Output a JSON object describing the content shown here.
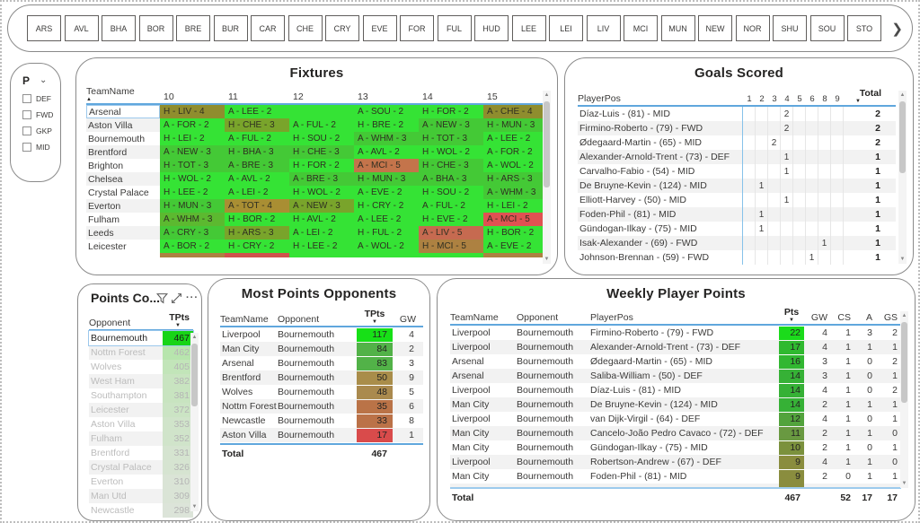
{
  "team_nav": {
    "teams": [
      "ARS",
      "AVL",
      "BHA",
      "BOR",
      "BRE",
      "BUR",
      "CAR",
      "CHE",
      "CRY",
      "EVE",
      "FOR",
      "FUL",
      "HUD",
      "LEE",
      "LEI",
      "LIV",
      "MCI",
      "MUN",
      "NEW",
      "NOR",
      "SHU",
      "SOU",
      "STO"
    ],
    "next_label": "❯"
  },
  "position_filter": {
    "label": "P",
    "chevron": "⌄",
    "options": [
      "DEF",
      "FWD",
      "GKP",
      "MID"
    ]
  },
  "fixtures": {
    "title": "Fixtures",
    "first_col": "TeamName",
    "sort_asc": "▲",
    "gw_columns": [
      "10",
      "11",
      "12",
      "13",
      "14",
      "15"
    ],
    "rows": [
      {
        "team": "Arsenal",
        "cells": [
          {
            "t": "H - LIV - 4",
            "c": "#8f8d2e"
          },
          {
            "t": "A - LEE - 2",
            "c": "#35e335"
          },
          {
            "t": "",
            "c": "#35e335"
          },
          {
            "t": "A - SOU - 2",
            "c": "#35e335"
          },
          {
            "t": "H - FOR - 2",
            "c": "#35e335"
          },
          {
            "t": "A - CHE - 4",
            "c": "#8f8d2e"
          }
        ]
      },
      {
        "team": "Aston Villa",
        "cells": [
          {
            "t": "A - FOR - 2",
            "c": "#35e335"
          },
          {
            "t": "H - CHE - 3",
            "c": "#79a42b"
          },
          {
            "t": "A - FUL - 2",
            "c": "#35e335"
          },
          {
            "t": "H - BRE - 2",
            "c": "#35e335"
          },
          {
            "t": "A - NEW - 3",
            "c": "#44c936"
          },
          {
            "t": "H - MUN - 3",
            "c": "#44c936"
          }
        ]
      },
      {
        "team": "Bournemouth",
        "cells": [
          {
            "t": "H - LEI - 2",
            "c": "#35e335"
          },
          {
            "t": "A - FUL - 2",
            "c": "#35e335"
          },
          {
            "t": "H - SOU - 2",
            "c": "#35e335"
          },
          {
            "t": "A - WHM - 3",
            "c": "#44c936"
          },
          {
            "t": "H - TOT - 3",
            "c": "#44c936"
          },
          {
            "t": "A - LEE - 2",
            "c": "#35e335"
          }
        ]
      },
      {
        "team": "Brentford",
        "cells": [
          {
            "t": "A - NEW - 3",
            "c": "#44c936"
          },
          {
            "t": "H - BHA - 3",
            "c": "#44c936"
          },
          {
            "t": "H - CHE - 3",
            "c": "#44c936"
          },
          {
            "t": "A - AVL - 2",
            "c": "#35e335"
          },
          {
            "t": "H - WOL - 2",
            "c": "#35e335"
          },
          {
            "t": "A - FOR - 2",
            "c": "#35e335"
          }
        ]
      },
      {
        "team": "Brighton",
        "cells": [
          {
            "t": "H - TOT - 3",
            "c": "#44c936"
          },
          {
            "t": "A - BRE - 3",
            "c": "#44c936"
          },
          {
            "t": "H - FOR - 2",
            "c": "#35e335"
          },
          {
            "t": "A - MCI - 5",
            "c": "#c4744b"
          },
          {
            "t": "H - CHE - 3",
            "c": "#44c936"
          },
          {
            "t": "A - WOL - 2",
            "c": "#35e335"
          }
        ]
      },
      {
        "team": "Chelsea",
        "cells": [
          {
            "t": "H - WOL - 2",
            "c": "#35e335"
          },
          {
            "t": "A - AVL - 2",
            "c": "#35e335"
          },
          {
            "t": "A - BRE - 3",
            "c": "#44c936"
          },
          {
            "t": "H - MUN - 3",
            "c": "#44c936"
          },
          {
            "t": "A - BHA - 3",
            "c": "#44c936"
          },
          {
            "t": "H - ARS - 3",
            "c": "#44c936"
          }
        ]
      },
      {
        "team": "Crystal Palace",
        "cells": [
          {
            "t": "H - LEE - 2",
            "c": "#35e335"
          },
          {
            "t": "A - LEI - 2",
            "c": "#35e335"
          },
          {
            "t": "H - WOL - 2",
            "c": "#35e335"
          },
          {
            "t": "A - EVE - 2",
            "c": "#35e335"
          },
          {
            "t": "H - SOU - 2",
            "c": "#35e335"
          },
          {
            "t": "A - WHM - 3",
            "c": "#44c936"
          }
        ]
      },
      {
        "team": "Everton",
        "cells": [
          {
            "t": "H - MUN - 3",
            "c": "#44c936"
          },
          {
            "t": "A - TOT - 4",
            "c": "#a98e33"
          },
          {
            "t": "A - NEW - 3",
            "c": "#79a42b"
          },
          {
            "t": "H - CRY - 2",
            "c": "#35e335"
          },
          {
            "t": "A - FUL - 2",
            "c": "#35e335"
          },
          {
            "t": "H - LEI - 2",
            "c": "#35e335"
          }
        ]
      },
      {
        "team": "Fulham",
        "cells": [
          {
            "t": "A - WHM - 3",
            "c": "#5cb930"
          },
          {
            "t": "H - BOR - 2",
            "c": "#35e335"
          },
          {
            "t": "H - AVL - 2",
            "c": "#35e335"
          },
          {
            "t": "A - LEE - 2",
            "c": "#35e335"
          },
          {
            "t": "H - EVE - 2",
            "c": "#35e335"
          },
          {
            "t": "A - MCI - 5",
            "c": "#e05252"
          }
        ]
      },
      {
        "team": "Leeds",
        "cells": [
          {
            "t": "A - CRY - 3",
            "c": "#44c936"
          },
          {
            "t": "H - ARS - 3",
            "c": "#79a42b"
          },
          {
            "t": "A - LEI - 2",
            "c": "#35e335"
          },
          {
            "t": "H - FUL - 2",
            "c": "#35e335"
          },
          {
            "t": "A - LIV - 5",
            "c": "#c66a50"
          },
          {
            "t": "H - BOR - 2",
            "c": "#35e335"
          }
        ]
      },
      {
        "team": "Leicester",
        "cells": [
          {
            "t": "A - BOR - 2",
            "c": "#35e335"
          },
          {
            "t": "H - CRY - 2",
            "c": "#35e335"
          },
          {
            "t": "H - LEE - 2",
            "c": "#35e335"
          },
          {
            "t": "A - WOL - 2",
            "c": "#35e335"
          },
          {
            "t": "H - MCI - 5",
            "c": "#ad8141"
          },
          {
            "t": "A - EVE - 2",
            "c": "#35e335"
          }
        ]
      }
    ],
    "partial_row": [
      "#ad8141",
      "#d0524c",
      "#35e335",
      "#35e335",
      "#35e335",
      "#ad8141"
    ]
  },
  "goals_scored": {
    "title": "Goals Scored",
    "first_col": "PlayerPos",
    "gw_columns": [
      "1",
      "2",
      "3",
      "4",
      "5",
      "6",
      "8",
      "9"
    ],
    "total_col": "Total",
    "sort_desc": "▼",
    "rows": [
      {
        "player": "Díaz-Luis - (81) - MID",
        "values": [
          "",
          "",
          "",
          "2",
          "",
          "",
          "",
          ""
        ],
        "total": "2"
      },
      {
        "player": "Firmino-Roberto - (79) - FWD",
        "values": [
          "",
          "",
          "",
          "2",
          "",
          "",
          "",
          ""
        ],
        "total": "2"
      },
      {
        "player": "Ødegaard-Martin - (65) - MID",
        "values": [
          "",
          "",
          "2",
          "",
          "",
          "",
          "",
          ""
        ],
        "total": "2"
      },
      {
        "player": "Alexander-Arnold-Trent - (73) - DEF",
        "values": [
          "",
          "",
          "",
          "1",
          "",
          "",
          "",
          ""
        ],
        "total": "1"
      },
      {
        "player": "Carvalho-Fabio - (54) - MID",
        "values": [
          "",
          "",
          "",
          "1",
          "",
          "",
          "",
          ""
        ],
        "total": "1"
      },
      {
        "player": "De Bruyne-Kevin - (124) - MID",
        "values": [
          "",
          "1",
          "",
          "",
          "",
          "",
          "",
          ""
        ],
        "total": "1"
      },
      {
        "player": "Elliott-Harvey - (50) - MID",
        "values": [
          "",
          "",
          "",
          "1",
          "",
          "",
          "",
          ""
        ],
        "total": "1"
      },
      {
        "player": "Foden-Phil - (81) - MID",
        "values": [
          "",
          "1",
          "",
          "",
          "",
          "",
          "",
          ""
        ],
        "total": "1"
      },
      {
        "player": "Gündogan-Ilkay - (75) - MID",
        "values": [
          "",
          "1",
          "",
          "",
          "",
          "",
          "",
          ""
        ],
        "total": "1"
      },
      {
        "player": "Isak-Alexander - (69) - FWD",
        "values": [
          "",
          "",
          "",
          "",
          "",
          "",
          "1",
          ""
        ],
        "total": "1"
      },
      {
        "player": "Johnson-Brennan - (59) - FWD",
        "values": [
          "",
          "",
          "",
          "",
          "",
          "1",
          "",
          ""
        ],
        "total": "1"
      }
    ]
  },
  "points_conceded": {
    "title": "Points Co...",
    "dots": "···",
    "columns": {
      "opponent": "Opponent",
      "tpts": "TPts"
    },
    "sort_desc": "▼",
    "rows": [
      {
        "opponent": "Bournemouth",
        "tpts": "467",
        "color": "#17d417",
        "selected": true
      },
      {
        "opponent": "Nottm Forest",
        "tpts": "462",
        "color": "#b7e5ad",
        "selected": false
      },
      {
        "opponent": "Wolves",
        "tpts": "405",
        "color": "#c2e5b9",
        "selected": false
      },
      {
        "opponent": "West Ham",
        "tpts": "382",
        "color": "#c8e4c0",
        "selected": false
      },
      {
        "opponent": "Southampton",
        "tpts": "381",
        "color": "#c8e4c0",
        "selected": false
      },
      {
        "opponent": "Leicester",
        "tpts": "372",
        "color": "#cbe4c4",
        "selected": false
      },
      {
        "opponent": "Aston Villa",
        "tpts": "353",
        "color": "#d0e4ca",
        "selected": false
      },
      {
        "opponent": "Fulham",
        "tpts": "352",
        "color": "#d0e4ca",
        "selected": false
      },
      {
        "opponent": "Brentford",
        "tpts": "331",
        "color": "#d5e4d0",
        "selected": false
      },
      {
        "opponent": "Crystal Palace",
        "tpts": "326",
        "color": "#d6e4d1",
        "selected": false
      },
      {
        "opponent": "Everton",
        "tpts": "310",
        "color": "#dae4d6",
        "selected": false
      },
      {
        "opponent": "Man Utd",
        "tpts": "309",
        "color": "#dae4d6",
        "selected": false
      },
      {
        "opponent": "Newcastle",
        "tpts": "298",
        "color": "#dce4d9",
        "selected": false
      }
    ]
  },
  "most_points_opponents": {
    "title": "Most Points Opponents",
    "columns": {
      "team": "TeamName",
      "opponent": "Opponent",
      "tpts": "TPts",
      "gw": "GW"
    },
    "sort_desc": "▼",
    "rows": [
      {
        "team": "Liverpool",
        "opponent": "Bournemouth",
        "tpts": "117",
        "color": "#17e017",
        "gw": "4"
      },
      {
        "team": "Man City",
        "opponent": "Bournemouth",
        "tpts": "84",
        "color": "#52b248",
        "gw": "2"
      },
      {
        "team": "Arsenal",
        "opponent": "Bournemouth",
        "tpts": "83",
        "color": "#52b248",
        "gw": "3"
      },
      {
        "team": "Brentford",
        "opponent": "Bournemouth",
        "tpts": "50",
        "color": "#a98d4a",
        "gw": "9"
      },
      {
        "team": "Wolves",
        "opponent": "Bournemouth",
        "tpts": "48",
        "color": "#aa8a4e",
        "gw": "5"
      },
      {
        "team": "Nottm Forest",
        "opponent": "Bournemouth",
        "tpts": "35",
        "color": "#ba7347",
        "gw": "6"
      },
      {
        "team": "Newcastle",
        "opponent": "Bournemouth",
        "tpts": "33",
        "color": "#bb7248",
        "gw": "8"
      },
      {
        "team": "Aston Villa",
        "opponent": "Bournemouth",
        "tpts": "17",
        "color": "#d94b4b",
        "gw": "1"
      }
    ],
    "total": {
      "label": "Total",
      "tpts": "467"
    }
  },
  "weekly_player_points": {
    "title": "Weekly Player Points",
    "columns": {
      "team": "TeamName",
      "opponent": "Opponent",
      "player": "PlayerPos",
      "pts": "Pts",
      "gw": "GW",
      "cs": "CS",
      "a": "A",
      "gs": "GS"
    },
    "sort_desc": "▼",
    "rows": [
      {
        "team": "Liverpool",
        "opponent": "Bournemouth",
        "player": "Firmino-Roberto - (79) - FWD",
        "pts": "22",
        "color": "#1bdb1b",
        "gw": "4",
        "cs": "1",
        "a": "3",
        "gs": "2"
      },
      {
        "team": "Liverpool",
        "opponent": "Bournemouth",
        "player": "Alexander-Arnold-Trent - (73) - DEF",
        "pts": "17",
        "color": "#2fb92f",
        "gw": "4",
        "cs": "1",
        "a": "1",
        "gs": "1"
      },
      {
        "team": "Arsenal",
        "opponent": "Bournemouth",
        "player": "Ødegaard-Martin - (65) - MID",
        "pts": "16",
        "color": "#31b731",
        "gw": "3",
        "cs": "1",
        "a": "0",
        "gs": "2"
      },
      {
        "team": "Arsenal",
        "opponent": "Bournemouth",
        "player": "Saliba-William - (50) - DEF",
        "pts": "14",
        "color": "#36b136",
        "gw": "3",
        "cs": "1",
        "a": "0",
        "gs": "1"
      },
      {
        "team": "Liverpool",
        "opponent": "Bournemouth",
        "player": "Díaz-Luis - (81) - MID",
        "pts": "14",
        "color": "#36b136",
        "gw": "4",
        "cs": "1",
        "a": "0",
        "gs": "2"
      },
      {
        "team": "Man City",
        "opponent": "Bournemouth",
        "player": "De Bruyne-Kevin - (124) - MID",
        "pts": "14",
        "color": "#36b136",
        "gw": "2",
        "cs": "1",
        "a": "1",
        "gs": "1"
      },
      {
        "team": "Liverpool",
        "opponent": "Bournemouth",
        "player": "van Dijk-Virgil - (64) - DEF",
        "pts": "12",
        "color": "#52a33c",
        "gw": "4",
        "cs": "1",
        "a": "0",
        "gs": "1"
      },
      {
        "team": "Man City",
        "opponent": "Bournemouth",
        "player": "Cancelo-João Pedro Cavaco - (72) - DEF",
        "pts": "11",
        "color": "#699941",
        "gw": "2",
        "cs": "1",
        "a": "1",
        "gs": "0"
      },
      {
        "team": "Man City",
        "opponent": "Bournemouth",
        "player": "Gündogan-Ilkay - (75) - MID",
        "pts": "10",
        "color": "#7b913d",
        "gw": "2",
        "cs": "1",
        "a": "0",
        "gs": "1"
      },
      {
        "team": "Liverpool",
        "opponent": "Bournemouth",
        "player": "Robertson-Andrew - (67) - DEF",
        "pts": "9",
        "color": "#8a8d3e",
        "gw": "4",
        "cs": "1",
        "a": "1",
        "gs": "0"
      },
      {
        "team": "Man City",
        "opponent": "Bournemouth",
        "player": "Foden-Phil - (81) - MID",
        "pts": "9",
        "color": "#8a8d3e",
        "gw": "2",
        "cs": "0",
        "a": "1",
        "gs": "1"
      }
    ],
    "partial_color": "#8a8d3e",
    "total": {
      "label": "Total",
      "pts": "467",
      "gw": "",
      "cs": "52",
      "a": "17",
      "gs": "17"
    }
  }
}
